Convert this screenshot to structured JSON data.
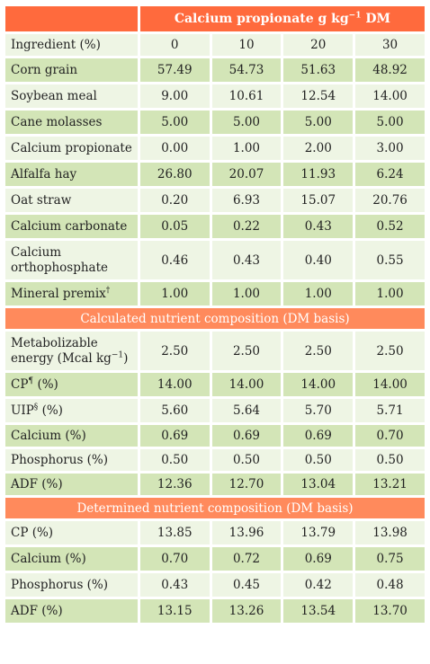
{
  "header": {
    "title_main": "Calcium propionate g kg",
    "title_sup": "−1",
    "title_tail": " DM"
  },
  "columns": [
    "Ingredient (%)",
    "0",
    "10",
    "20",
    "30"
  ],
  "ingredients": [
    {
      "label": "Corn grain",
      "values": [
        "57.49",
        "54.73",
        "51.63",
        "48.92"
      ]
    },
    {
      "label": "Soybean meal",
      "values": [
        "9.00",
        "10.61",
        "12.54",
        "14.00"
      ]
    },
    {
      "label": "Cane molasses",
      "values": [
        "5.00",
        "5.00",
        "5.00",
        "5.00"
      ]
    },
    {
      "label": "Calcium propionate",
      "values": [
        "0.00",
        "1.00",
        "2.00",
        "3.00"
      ]
    },
    {
      "label": "Alfalfa hay",
      "values": [
        "26.80",
        "20.07",
        "11.93",
        "6.24"
      ]
    },
    {
      "label": "Oat straw",
      "values": [
        "0.20",
        "6.93",
        "15.07",
        "20.76"
      ]
    },
    {
      "label": "Calcium carbonate",
      "values": [
        "0.05",
        "0.22",
        "0.43",
        "0.52"
      ]
    },
    {
      "label": "Calcium orthophosphate",
      "values": [
        "0.46",
        "0.43",
        "0.40",
        "0.55"
      ]
    },
    {
      "label": "Mineral premix",
      "sup": "†",
      "values": [
        "1.00",
        "1.00",
        "1.00",
        "1.00"
      ]
    }
  ],
  "calculated": {
    "title": "Calculated nutrient composition (DM basis)",
    "rows": [
      {
        "label": "Metabolizable energy (Mcal kg",
        "sup": "−1",
        "tail": ")",
        "values": [
          "2.50",
          "2.50",
          "2.50",
          "2.50"
        ]
      },
      {
        "label": "CP",
        "sup": "¶",
        "tail": " (%)",
        "values": [
          "14.00",
          "14.00",
          "14.00",
          "14.00"
        ]
      },
      {
        "label": "UIP",
        "sup": "§",
        "tail": " (%)",
        "values": [
          "5.60",
          "5.64",
          "5.70",
          "5.71"
        ]
      },
      {
        "label": "Calcium (%)",
        "values": [
          "0.69",
          "0.69",
          "0.69",
          "0.70"
        ]
      },
      {
        "label": "Phosphorus (%)",
        "values": [
          "0.50",
          "0.50",
          "0.50",
          "0.50"
        ]
      },
      {
        "label": "ADF (%)",
        "values": [
          "12.36",
          "12.70",
          "13.04",
          "13.21"
        ]
      }
    ]
  },
  "determined": {
    "title": "Determined nutrient composition (DM basis)",
    "rows": [
      {
        "label": "CP (%)",
        "values": [
          "13.85",
          "13.96",
          "13.79",
          "13.98"
        ]
      },
      {
        "label": "Calcium (%)",
        "values": [
          "0.70",
          "0.72",
          "0.69",
          "0.75"
        ]
      },
      {
        "label": "Phosphorus (%)",
        "values": [
          "0.43",
          "0.45",
          "0.42",
          "0.48"
        ]
      },
      {
        "label": "ADF (%)",
        "values": [
          "13.15",
          "13.26",
          "13.54",
          "13.70"
        ]
      }
    ]
  },
  "colors": {
    "header_bg": "#ff6a3d",
    "section_bg": "#ff8a5c",
    "row_light": "#eef5e4",
    "row_green": "#d3e5b7"
  }
}
